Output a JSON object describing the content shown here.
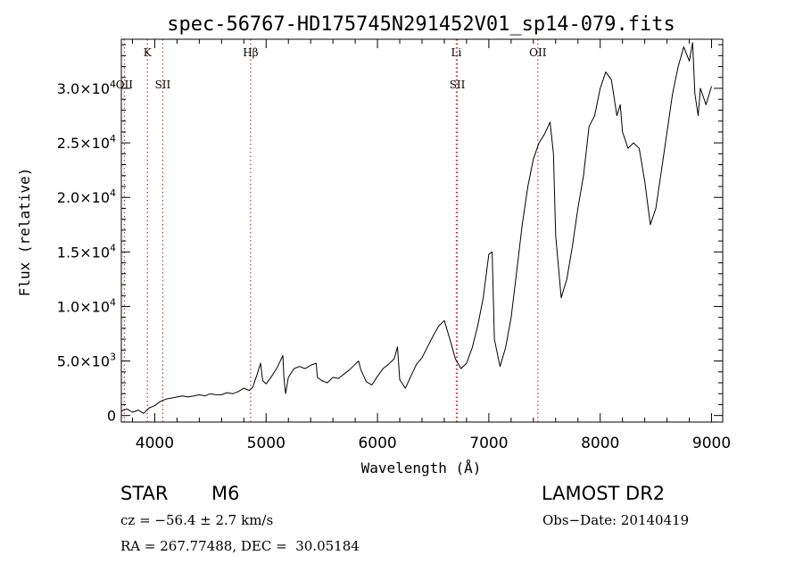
{
  "chart_data": {
    "type": "line",
    "title": "spec-56767-HD175745N291452V01_sp14-079.fits",
    "xlabel": "Wavelength (Å)",
    "ylabel": "Flux (relative)",
    "xlim": [
      3700,
      9100
    ],
    "ylim": [
      -600,
      34500
    ],
    "x_ticks": [
      {
        "value": 4000,
        "label": "4000"
      },
      {
        "value": 5000,
        "label": "5000"
      },
      {
        "value": 6000,
        "label": "6000"
      },
      {
        "value": 7000,
        "label": "7000"
      },
      {
        "value": 8000,
        "label": "8000"
      },
      {
        "value": 9000,
        "label": "9000"
      }
    ],
    "y_ticks": [
      {
        "value": 0,
        "mantissa": "0",
        "exponent": ""
      },
      {
        "value": 5000,
        "mantissa": "5.0×10",
        "exponent": "3"
      },
      {
        "value": 10000,
        "mantissa": "1.0×10",
        "exponent": "4"
      },
      {
        "value": 15000,
        "mantissa": "1.5×10",
        "exponent": "4"
      },
      {
        "value": 20000,
        "mantissa": "2.0×10",
        "exponent": "4"
      },
      {
        "value": 25000,
        "mantissa": "2.5×10",
        "exponent": "4"
      },
      {
        "value": 30000,
        "mantissa": "3.0×10",
        "exponent": "4"
      }
    ],
    "spectral_lines": [
      {
        "wavelength": 3934,
        "label": "K",
        "row": "upper"
      },
      {
        "wavelength": 3727,
        "label": "OII",
        "row": "lower"
      },
      {
        "wavelength": 4072,
        "label": "SII",
        "row": "lower"
      },
      {
        "wavelength": 4861,
        "label": "Hβ",
        "row": "upper"
      },
      {
        "wavelength": 6708,
        "label": "Li",
        "row": "upper"
      },
      {
        "wavelength": 6717,
        "label": "SII",
        "row": "lower"
      },
      {
        "wavelength": 7440,
        "label": "OII",
        "row": "upper"
      }
    ],
    "series": [
      {
        "x": [
          3700,
          3750,
          3800,
          3850,
          3900,
          3950,
          4000,
          4050,
          4100,
          4150,
          4200,
          4250,
          4300,
          4350,
          4400,
          4450,
          4500,
          4550,
          4600,
          4650,
          4700,
          4750,
          4800,
          4850,
          4880,
          4920,
          4950,
          4970,
          5000,
          5050,
          5100,
          5150,
          5160,
          5175,
          5200,
          5250,
          5300,
          5350,
          5400,
          5450,
          5460,
          5500,
          5550,
          5600,
          5650,
          5700,
          5750,
          5800,
          5830,
          5850,
          5900,
          5950,
          6000,
          6050,
          6100,
          6150,
          6180,
          6200,
          6250,
          6300,
          6350,
          6400,
          6450,
          6500,
          6550,
          6600,
          6650,
          6700,
          6750,
          6800,
          6850,
          6900,
          6950,
          7000,
          7030,
          7050,
          7100,
          7150,
          7200,
          7250,
          7300,
          7350,
          7400,
          7450,
          7500,
          7550,
          7580,
          7600,
          7650,
          7700,
          7750,
          7800,
          7850,
          7900,
          7950,
          8000,
          8050,
          8100,
          8150,
          8180,
          8200,
          8250,
          8300,
          8350,
          8400,
          8450,
          8500,
          8550,
          8600,
          8650,
          8700,
          8750,
          8800,
          8830,
          8850,
          8880,
          8900,
          8950,
          9000
        ],
        "y": [
          400,
          600,
          300,
          500,
          200,
          700,
          900,
          1300,
          1500,
          1600,
          1700,
          1800,
          1700,
          1800,
          1900,
          1800,
          2000,
          1900,
          1900,
          2100,
          2000,
          2200,
          2500,
          2300,
          2600,
          3800,
          4800,
          3200,
          2900,
          3600,
          4400,
          5500,
          3500,
          2000,
          3500,
          4300,
          4500,
          4300,
          4600,
          4800,
          3500,
          3200,
          3000,
          3500,
          3400,
          3800,
          4200,
          4700,
          5000,
          4200,
          3100,
          2800,
          3600,
          4300,
          4700,
          5200,
          6300,
          3300,
          2500,
          3600,
          4700,
          5300,
          6300,
          7300,
          8200,
          8700,
          7000,
          5200,
          4300,
          4800,
          6200,
          8200,
          10800,
          14800,
          15000,
          7000,
          4500,
          6200,
          9000,
          13200,
          17500,
          21000,
          23500,
          25000,
          25800,
          26900,
          24000,
          16500,
          10800,
          12500,
          15500,
          19000,
          22000,
          26500,
          27500,
          30000,
          31500,
          30800,
          27500,
          28500,
          26000,
          24500,
          25000,
          24500,
          21500,
          17500,
          19000,
          22500,
          26000,
          29500,
          32000,
          33800,
          32500,
          34200,
          29500,
          27500,
          30000,
          28500,
          30200
        ]
      }
    ]
  },
  "info": {
    "object_class": "STAR",
    "subclass": "M6",
    "survey": "LAMOST DR2",
    "velocity": "cz = −56.4 ± 2.7 km/s",
    "obs_date": "Obs−Date: 20140419",
    "coords": "RA = 267.77488, DEC =  30.05184"
  },
  "colors": {
    "line": "#000000",
    "marker_line": "#cc3333",
    "axes": "#000000"
  }
}
